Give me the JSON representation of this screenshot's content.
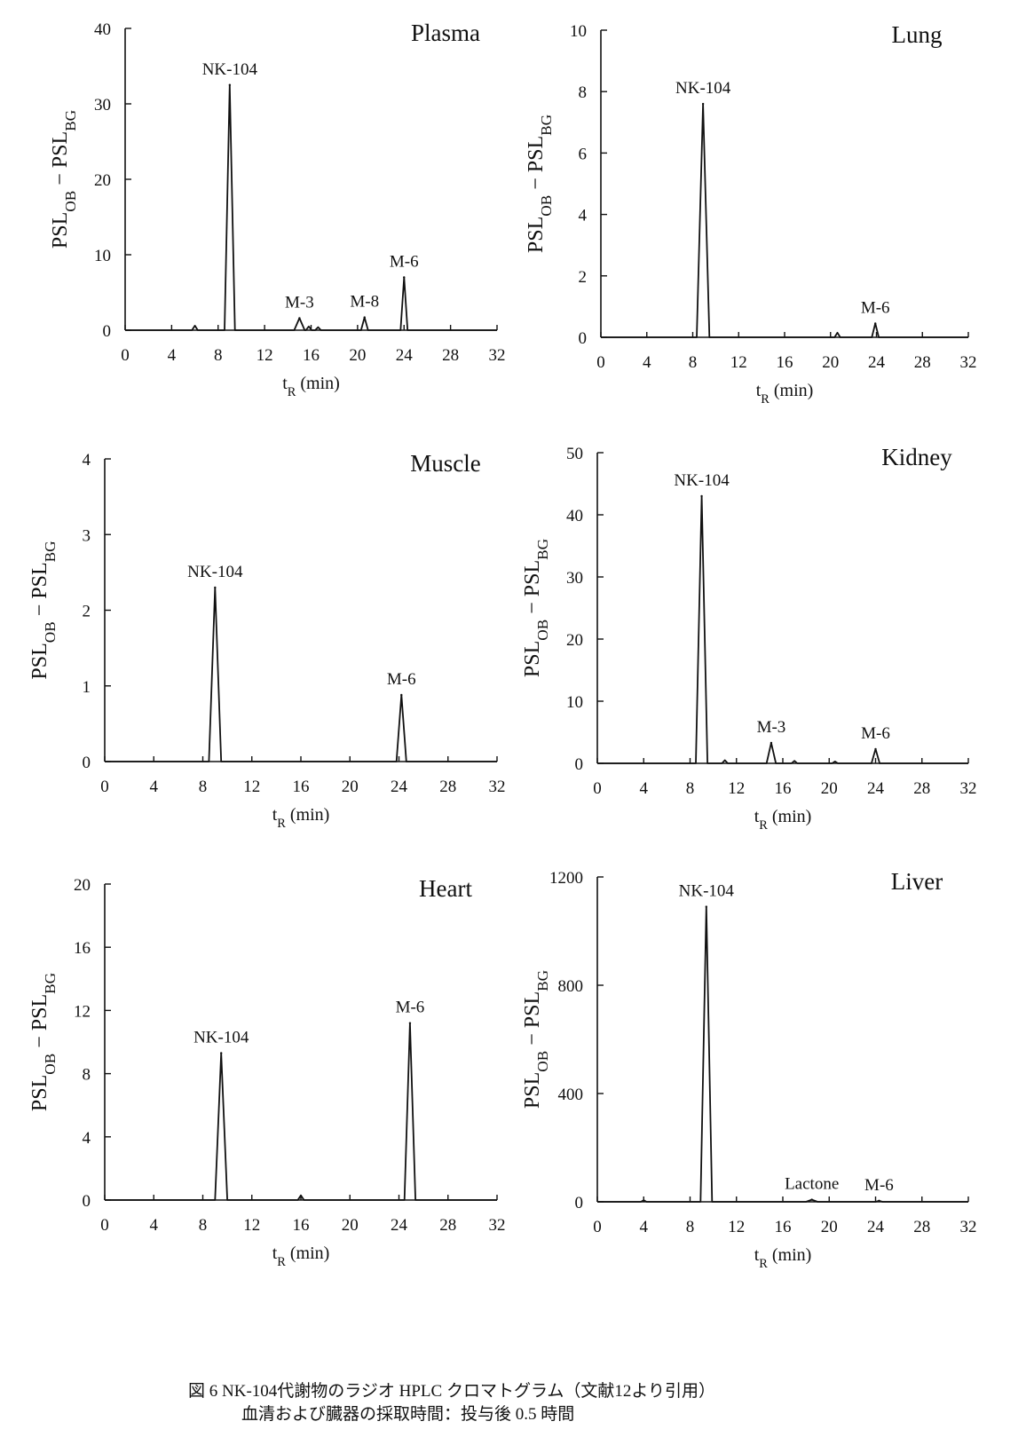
{
  "caption": {
    "line1": "図 6  NK-104代謝物のラジオ HPLC クロマトグラム（文献12より引用）",
    "line2": "血清および臓器の採取時間：投与後 0.5 時間"
  },
  "chart_data": [
    {
      "type": "line",
      "title": "Plasma",
      "xlabel": "t_R (min)",
      "ylabel": "PSL_OB − PSL_BG",
      "xlim": [
        0,
        32
      ],
      "ylim": [
        0,
        40
      ],
      "xticks": [
        0,
        4,
        8,
        12,
        16,
        20,
        24,
        28,
        32
      ],
      "yticks": [
        0,
        10,
        20,
        30,
        40
      ],
      "grid": false,
      "peaks": [
        {
          "label": "NK-104",
          "x": 9.0,
          "y": 32.5,
          "width": 0.45
        },
        {
          "label": "M-3",
          "x": 15.0,
          "y": 1.6,
          "width": 0.45
        },
        {
          "label": "M-8",
          "x": 20.6,
          "y": 1.7,
          "width": 0.3
        },
        {
          "label": "M-6",
          "x": 24.0,
          "y": 7.0,
          "width": 0.3
        }
      ],
      "minor_peaks": [
        {
          "x": 6.0,
          "y": 0.6
        },
        {
          "x": 15.8,
          "y": 0.5
        },
        {
          "x": 16.6,
          "y": 0.4
        }
      ]
    },
    {
      "type": "line",
      "title": "Lung",
      "xlabel": "t_R (min)",
      "ylabel": "PSL_OB − PSL_BG",
      "xlim": [
        0,
        32
      ],
      "ylim": [
        0,
        10
      ],
      "xticks": [
        0,
        4,
        8,
        12,
        16,
        20,
        24,
        28,
        32
      ],
      "yticks": [
        0,
        2,
        4,
        6,
        8,
        10
      ],
      "grid": false,
      "peaks": [
        {
          "label": "NK-104",
          "x": 8.9,
          "y": 7.6,
          "width": 0.55
        },
        {
          "label": "M-6",
          "x": 23.9,
          "y": 0.45,
          "width": 0.3
        }
      ],
      "minor_peaks": [
        {
          "x": 20.6,
          "y": 0.15
        }
      ]
    },
    {
      "type": "line",
      "title": "Muscle",
      "xlabel": "t_R (min)",
      "ylabel": "PSL_OB − PSL_BG",
      "xlim": [
        0,
        32
      ],
      "ylim": [
        0,
        4
      ],
      "xticks": [
        0,
        4,
        8,
        12,
        16,
        20,
        24,
        28,
        32
      ],
      "yticks": [
        0,
        1,
        2,
        3,
        4
      ],
      "grid": false,
      "peaks": [
        {
          "label": "NK-104",
          "x": 9.0,
          "y": 2.3,
          "width": 0.5
        },
        {
          "label": "M-6",
          "x": 24.2,
          "y": 0.88,
          "width": 0.4
        }
      ],
      "minor_peaks": []
    },
    {
      "type": "line",
      "title": "Kidney",
      "xlabel": "t_R (min)",
      "ylabel": "PSL_OB − PSL_BG",
      "xlim": [
        0,
        32
      ],
      "ylim": [
        0,
        50
      ],
      "xticks": [
        0,
        4,
        8,
        12,
        16,
        20,
        24,
        28,
        32
      ],
      "yticks": [
        0,
        10,
        20,
        30,
        40,
        50
      ],
      "grid": false,
      "peaks": [
        {
          "label": "NK-104",
          "x": 9.0,
          "y": 43,
          "width": 0.5
        },
        {
          "label": "M-3",
          "x": 15.0,
          "y": 3.3,
          "width": 0.4
        },
        {
          "label": "M-6",
          "x": 24.0,
          "y": 2.3,
          "width": 0.35
        }
      ],
      "minor_peaks": [
        {
          "x": 11.0,
          "y": 0.5
        },
        {
          "x": 17.0,
          "y": 0.4
        },
        {
          "x": 20.5,
          "y": 0.3
        }
      ]
    },
    {
      "type": "line",
      "title": "Heart",
      "xlabel": "t_R (min)",
      "ylabel": "PSL_OB − PSL_BG",
      "xlim": [
        0,
        32
      ],
      "ylim": [
        0,
        20
      ],
      "xticks": [
        0,
        4,
        8,
        12,
        16,
        20,
        24,
        28,
        32
      ],
      "yticks": [
        0,
        4,
        8,
        12,
        16,
        20
      ],
      "grid": false,
      "peaks": [
        {
          "label": "NK-104",
          "x": 9.5,
          "y": 9.3,
          "width": 0.5
        },
        {
          "label": "M-6",
          "x": 24.9,
          "y": 11.2,
          "width": 0.45
        }
      ],
      "minor_peaks": [
        {
          "x": 16.0,
          "y": 0.3
        }
      ]
    },
    {
      "type": "line",
      "title": "Liver",
      "xlabel": "t_R (min)",
      "ylabel": "PSL_OB − PSL_BG",
      "xlim": [
        0,
        32
      ],
      "ylim": [
        0,
        1200
      ],
      "xticks": [
        0,
        4,
        8,
        12,
        16,
        20,
        24,
        28,
        32
      ],
      "yticks": [
        0,
        400,
        800,
        1200
      ],
      "grid": false,
      "peaks": [
        {
          "label": "NK-104",
          "x": 9.4,
          "y": 1090,
          "width": 0.5
        },
        {
          "label": "Lactone",
          "x": 18.5,
          "y": 8,
          "width": 0.5
        },
        {
          "label": "M-6",
          "x": 24.3,
          "y": 4,
          "width": 0.3
        }
      ],
      "minor_peaks": [
        {
          "x": 4.0,
          "y": 6
        }
      ]
    }
  ]
}
